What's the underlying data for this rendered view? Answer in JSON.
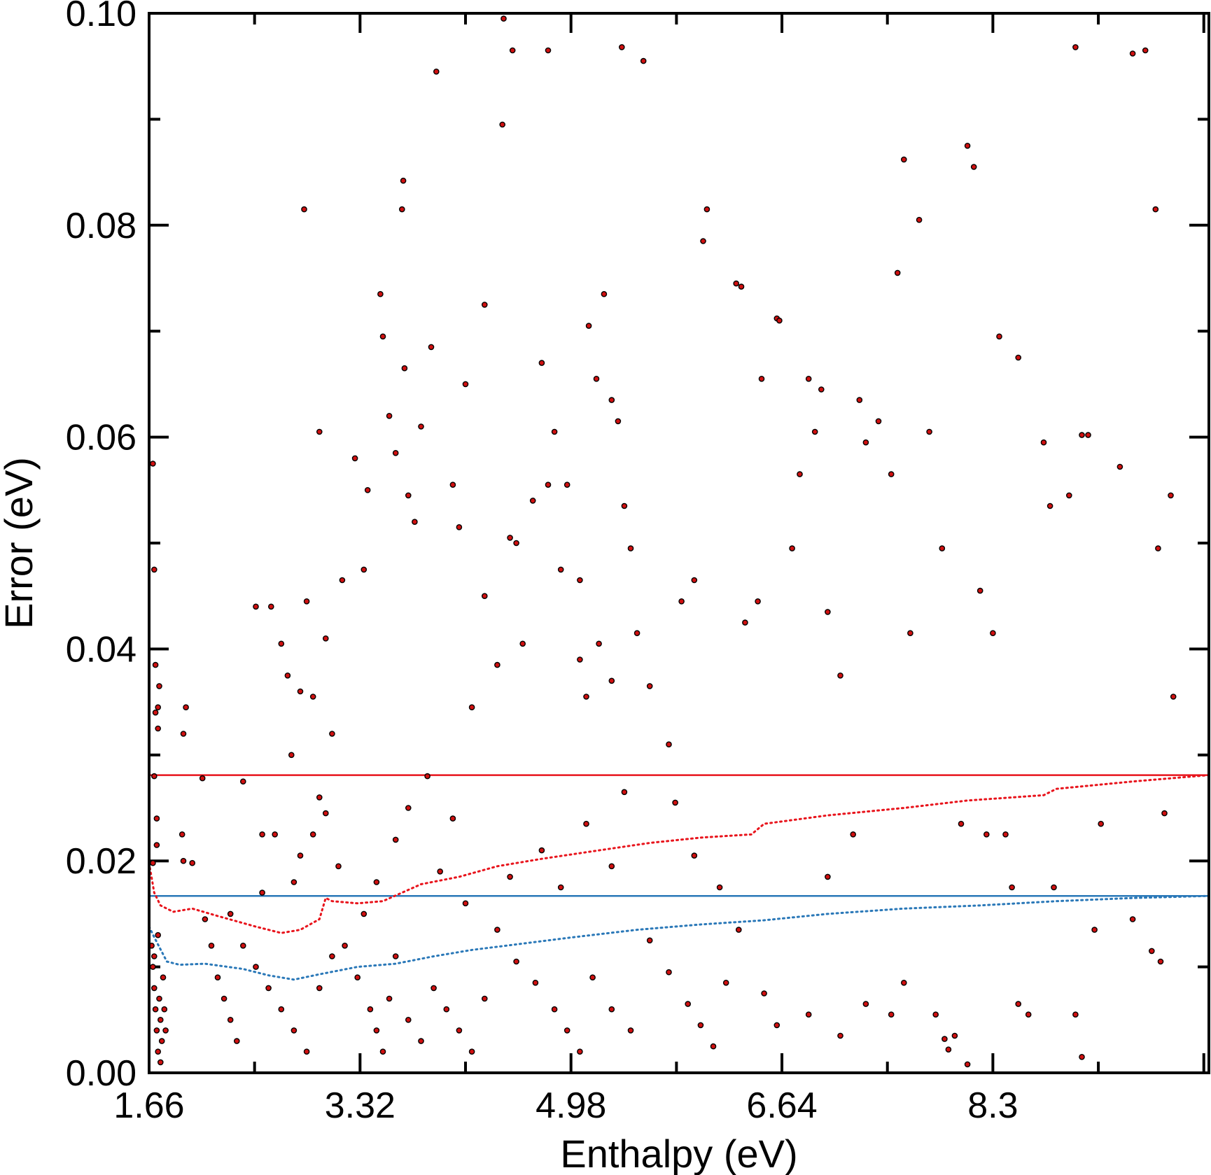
{
  "chart_data": {
    "type": "scatter",
    "title": "",
    "xlabel": "Enthalpy (eV)",
    "ylabel": "Error (eV)",
    "xlim": [
      1.66,
      10.0
    ],
    "ylim": [
      0.0,
      0.1
    ],
    "x_ticks": [
      "1.66",
      "3.32",
      "4.98",
      "6.64",
      "8.3"
    ],
    "x_tick_values": [
      1.66,
      3.32,
      4.98,
      6.64,
      8.3
    ],
    "y_ticks": [
      "0.00",
      "0.02",
      "0.04",
      "0.06",
      "0.08",
      "0.10"
    ],
    "y_tick_values": [
      0.0,
      0.02,
      0.04,
      0.06,
      0.08,
      0.1
    ],
    "grid": false,
    "legend": "none",
    "colors": {
      "points_fill": "#d01010",
      "points_edge": "#000000",
      "red_line": "#e8141c",
      "blue_line": "#2a78b8"
    },
    "series": [
      {
        "kind": "scatter",
        "color": "#d01010",
        "points": [
          [
            1.69,
            0.0575
          ],
          [
            1.7,
            0.0475
          ],
          [
            1.71,
            0.0385
          ],
          [
            1.71,
            0.034
          ],
          [
            1.73,
            0.0345
          ],
          [
            1.73,
            0.0325
          ],
          [
            1.74,
            0.0365
          ],
          [
            1.7,
            0.028
          ],
          [
            1.72,
            0.024
          ],
          [
            1.72,
            0.0215
          ],
          [
            1.69,
            0.0198
          ],
          [
            1.68,
            0.012
          ],
          [
            1.69,
            0.01
          ],
          [
            1.7,
            0.008
          ],
          [
            1.71,
            0.006
          ],
          [
            1.72,
            0.004
          ],
          [
            1.73,
            0.002
          ],
          [
            1.74,
            0.007
          ],
          [
            1.75,
            0.005
          ],
          [
            1.76,
            0.003
          ],
          [
            1.77,
            0.009
          ],
          [
            1.78,
            0.006
          ],
          [
            1.7,
            0.011
          ],
          [
            1.73,
            0.013
          ],
          [
            1.75,
            0.001
          ],
          [
            1.79,
            0.004
          ],
          [
            1.95,
            0.0345
          ],
          [
            1.93,
            0.032
          ],
          [
            1.92,
            0.0225
          ],
          [
            1.93,
            0.02
          ],
          [
            2.08,
            0.0278
          ],
          [
            2.0,
            0.0198
          ],
          [
            2.1,
            0.0145
          ],
          [
            2.15,
            0.012
          ],
          [
            2.2,
            0.009
          ],
          [
            2.25,
            0.007
          ],
          [
            2.3,
            0.005
          ],
          [
            2.35,
            0.003
          ],
          [
            2.4,
            0.0275
          ],
          [
            2.55,
            0.0225
          ],
          [
            2.5,
            0.044
          ],
          [
            2.62,
            0.044
          ],
          [
            2.7,
            0.0405
          ],
          [
            2.75,
            0.0375
          ],
          [
            2.85,
            0.036
          ],
          [
            2.95,
            0.0355
          ],
          [
            2.9,
            0.0445
          ],
          [
            3.05,
            0.041
          ],
          [
            3.18,
            0.0465
          ],
          [
            3.1,
            0.032
          ],
          [
            3.0,
            0.026
          ],
          [
            2.78,
            0.03
          ],
          [
            2.65,
            0.0225
          ],
          [
            2.8,
            0.018
          ],
          [
            2.88,
            0.0815
          ],
          [
            3.0,
            0.0605
          ],
          [
            3.28,
            0.058
          ],
          [
            3.35,
            0.0475
          ],
          [
            3.38,
            0.055
          ],
          [
            3.48,
            0.0735
          ],
          [
            3.5,
            0.0695
          ],
          [
            3.55,
            0.062
          ],
          [
            3.6,
            0.0585
          ],
          [
            3.65,
            0.0815
          ],
          [
            3.66,
            0.0842
          ],
          [
            3.67,
            0.0665
          ],
          [
            3.7,
            0.0545
          ],
          [
            3.75,
            0.052
          ],
          [
            3.8,
            0.061
          ],
          [
            3.88,
            0.0685
          ],
          [
            4.05,
            0.0555
          ],
          [
            4.1,
            0.0515
          ],
          [
            4.15,
            0.065
          ],
          [
            4.3,
            0.0725
          ],
          [
            4.44,
            0.0895
          ],
          [
            4.45,
            0.0995
          ],
          [
            4.52,
            0.0965
          ],
          [
            3.92,
            0.0945
          ],
          [
            4.8,
            0.0965
          ],
          [
            5.38,
            0.0968
          ],
          [
            5.55,
            0.0955
          ],
          [
            4.2,
            0.0345
          ],
          [
            4.3,
            0.045
          ],
          [
            4.4,
            0.0385
          ],
          [
            4.5,
            0.0505
          ],
          [
            4.55,
            0.05
          ],
          [
            4.6,
            0.0405
          ],
          [
            4.68,
            0.054
          ],
          [
            4.75,
            0.067
          ],
          [
            4.8,
            0.0555
          ],
          [
            4.85,
            0.0605
          ],
          [
            4.9,
            0.0475
          ],
          [
            4.95,
            0.0555
          ],
          [
            5.05,
            0.0465
          ],
          [
            5.12,
            0.0705
          ],
          [
            5.18,
            0.0655
          ],
          [
            5.24,
            0.0735
          ],
          [
            5.3,
            0.0635
          ],
          [
            5.35,
            0.0615
          ],
          [
            5.4,
            0.0535
          ],
          [
            5.45,
            0.0495
          ],
          [
            5.05,
            0.039
          ],
          [
            5.1,
            0.0355
          ],
          [
            5.2,
            0.0405
          ],
          [
            5.3,
            0.037
          ],
          [
            5.5,
            0.0415
          ],
          [
            5.6,
            0.0365
          ],
          [
            5.75,
            0.031
          ],
          [
            5.85,
            0.0445
          ],
          [
            5.95,
            0.0465
          ],
          [
            6.05,
            0.0815
          ],
          [
            6.02,
            0.0785
          ],
          [
            6.28,
            0.0745
          ],
          [
            6.32,
            0.0742
          ],
          [
            6.35,
            0.0425
          ],
          [
            6.45,
            0.0445
          ],
          [
            6.48,
            0.0655
          ],
          [
            6.6,
            0.0712
          ],
          [
            6.62,
            0.071
          ],
          [
            6.72,
            0.0495
          ],
          [
            6.78,
            0.0565
          ],
          [
            6.85,
            0.0655
          ],
          [
            6.9,
            0.0605
          ],
          [
            6.95,
            0.0645
          ],
          [
            7.0,
            0.0435
          ],
          [
            7.1,
            0.0375
          ],
          [
            7.25,
            0.0635
          ],
          [
            7.3,
            0.0595
          ],
          [
            7.4,
            0.0615
          ],
          [
            7.5,
            0.0565
          ],
          [
            7.55,
            0.0755
          ],
          [
            7.6,
            0.0862
          ],
          [
            7.65,
            0.0415
          ],
          [
            7.72,
            0.0805
          ],
          [
            7.8,
            0.0605
          ],
          [
            7.9,
            0.0495
          ],
          [
            8.1,
            0.0875
          ],
          [
            8.15,
            0.0855
          ],
          [
            8.2,
            0.0455
          ],
          [
            8.3,
            0.0415
          ],
          [
            8.35,
            0.0695
          ],
          [
            8.5,
            0.0675
          ],
          [
            8.7,
            0.0595
          ],
          [
            8.75,
            0.0535
          ],
          [
            8.9,
            0.0545
          ],
          [
            9.0,
            0.0602
          ],
          [
            9.05,
            0.0602
          ],
          [
            8.95,
            0.0968
          ],
          [
            9.4,
            0.0962
          ],
          [
            9.5,
            0.0965
          ],
          [
            9.3,
            0.0572
          ],
          [
            9.6,
            0.0495
          ],
          [
            9.7,
            0.0545
          ],
          [
            9.72,
            0.0355
          ],
          [
            9.65,
            0.0245
          ],
          [
            9.58,
            0.0815
          ],
          [
            3.2,
            0.012
          ],
          [
            3.3,
            0.009
          ],
          [
            3.4,
            0.006
          ],
          [
            3.45,
            0.004
          ],
          [
            3.5,
            0.002
          ],
          [
            3.55,
            0.007
          ],
          [
            3.6,
            0.011
          ],
          [
            3.7,
            0.005
          ],
          [
            3.8,
            0.003
          ],
          [
            3.9,
            0.008
          ],
          [
            4.0,
            0.006
          ],
          [
            4.1,
            0.004
          ],
          [
            4.2,
            0.002
          ],
          [
            4.3,
            0.007
          ],
          [
            3.35,
            0.015
          ],
          [
            3.45,
            0.018
          ],
          [
            3.6,
            0.022
          ],
          [
            3.7,
            0.025
          ],
          [
            3.85,
            0.028
          ],
          [
            3.95,
            0.019
          ],
          [
            4.05,
            0.024
          ],
          [
            4.15,
            0.016
          ],
          [
            2.3,
            0.015
          ],
          [
            2.4,
            0.012
          ],
          [
            2.5,
            0.01
          ],
          [
            2.6,
            0.008
          ],
          [
            2.7,
            0.006
          ],
          [
            2.8,
            0.004
          ],
          [
            2.9,
            0.002
          ],
          [
            3.0,
            0.008
          ],
          [
            3.1,
            0.011
          ],
          [
            2.55,
            0.017
          ],
          [
            2.85,
            0.0205
          ],
          [
            3.05,
            0.0245
          ],
          [
            3.15,
            0.0195
          ],
          [
            2.95,
            0.0225
          ],
          [
            4.4,
            0.0135
          ],
          [
            4.55,
            0.0105
          ],
          [
            4.7,
            0.0085
          ],
          [
            4.85,
            0.006
          ],
          [
            4.95,
            0.004
          ],
          [
            5.05,
            0.002
          ],
          [
            5.15,
            0.009
          ],
          [
            5.3,
            0.006
          ],
          [
            5.45,
            0.004
          ],
          [
            4.5,
            0.0185
          ],
          [
            4.75,
            0.021
          ],
          [
            4.9,
            0.0175
          ],
          [
            5.1,
            0.0235
          ],
          [
            5.3,
            0.0195
          ],
          [
            5.4,
            0.0265
          ],
          [
            5.6,
            0.0125
          ],
          [
            5.75,
            0.0095
          ],
          [
            5.9,
            0.0065
          ],
          [
            6.0,
            0.0045
          ],
          [
            6.1,
            0.0025
          ],
          [
            6.2,
            0.0085
          ],
          [
            5.8,
            0.0255
          ],
          [
            5.95,
            0.0205
          ],
          [
            6.15,
            0.0175
          ],
          [
            6.3,
            0.0135
          ],
          [
            6.5,
            0.0075
          ],
          [
            6.6,
            0.0045
          ],
          [
            6.85,
            0.0055
          ],
          [
            7.1,
            0.0035
          ],
          [
            7.0,
            0.0185
          ],
          [
            7.2,
            0.0225
          ],
          [
            7.3,
            0.0065
          ],
          [
            7.5,
            0.0055
          ],
          [
            7.6,
            0.0085
          ],
          [
            7.85,
            0.0055
          ],
          [
            8.0,
            0.0035
          ],
          [
            8.05,
            0.0235
          ],
          [
            8.25,
            0.0225
          ],
          [
            8.4,
            0.0225
          ],
          [
            8.45,
            0.0175
          ],
          [
            8.5,
            0.0065
          ],
          [
            8.58,
            0.0055
          ],
          [
            8.78,
            0.0175
          ],
          [
            8.95,
            0.0055
          ],
          [
            9.1,
            0.0135
          ],
          [
            9.15,
            0.0235
          ],
          [
            9.4,
            0.0145
          ],
          [
            9.55,
            0.0115
          ],
          [
            9.62,
            0.0105
          ],
          [
            9.0,
            0.0015
          ],
          [
            8.1,
            0.0008
          ],
          [
            7.95,
            0.0022
          ],
          [
            7.92,
            0.0032
          ]
        ]
      },
      {
        "kind": "line",
        "style": "solid",
        "color": "#e8141c",
        "points": [
          [
            1.66,
            0.0281
          ],
          [
            10.0,
            0.0281
          ]
        ]
      },
      {
        "kind": "line",
        "style": "solid",
        "color": "#2a78b8",
        "points": [
          [
            1.66,
            0.0167
          ],
          [
            10.0,
            0.0167
          ]
        ]
      },
      {
        "kind": "line",
        "style": "dotted",
        "color": "#e8141c",
        "points": [
          [
            1.66,
            0.0198
          ],
          [
            1.7,
            0.017
          ],
          [
            1.75,
            0.0158
          ],
          [
            1.85,
            0.0152
          ],
          [
            2.0,
            0.0155
          ],
          [
            2.2,
            0.0148
          ],
          [
            2.5,
            0.0138
          ],
          [
            2.7,
            0.0132
          ],
          [
            2.85,
            0.0135
          ],
          [
            3.0,
            0.0145
          ],
          [
            3.05,
            0.0165
          ],
          [
            3.1,
            0.0162
          ],
          [
            3.3,
            0.016
          ],
          [
            3.5,
            0.0162
          ],
          [
            3.8,
            0.0178
          ],
          [
            4.1,
            0.0185
          ],
          [
            4.4,
            0.0195
          ],
          [
            4.75,
            0.0202
          ],
          [
            5.2,
            0.021
          ],
          [
            5.6,
            0.0217
          ],
          [
            6.0,
            0.0222
          ],
          [
            6.4,
            0.0225
          ],
          [
            6.5,
            0.0235
          ],
          [
            7.0,
            0.0243
          ],
          [
            7.6,
            0.025
          ],
          [
            8.1,
            0.0257
          ],
          [
            8.7,
            0.0262
          ],
          [
            8.8,
            0.0268
          ],
          [
            9.4,
            0.0275
          ],
          [
            9.8,
            0.0279
          ],
          [
            10.0,
            0.0281
          ]
        ]
      },
      {
        "kind": "line",
        "style": "dotted",
        "color": "#2a78b8",
        "points": [
          [
            1.66,
            0.0138
          ],
          [
            1.7,
            0.0128
          ],
          [
            1.8,
            0.0105
          ],
          [
            1.9,
            0.0102
          ],
          [
            2.1,
            0.0103
          ],
          [
            2.4,
            0.0098
          ],
          [
            2.6,
            0.0092
          ],
          [
            2.8,
            0.0088
          ],
          [
            3.0,
            0.0093
          ],
          [
            3.3,
            0.01
          ],
          [
            3.6,
            0.0103
          ],
          [
            3.9,
            0.011
          ],
          [
            4.2,
            0.0116
          ],
          [
            4.6,
            0.0122
          ],
          [
            5.0,
            0.0128
          ],
          [
            5.5,
            0.0135
          ],
          [
            6.0,
            0.014
          ],
          [
            6.5,
            0.0144
          ],
          [
            7.0,
            0.015
          ],
          [
            7.6,
            0.0155
          ],
          [
            8.2,
            0.0158
          ],
          [
            8.8,
            0.0162
          ],
          [
            9.4,
            0.0165
          ],
          [
            10.0,
            0.0167
          ]
        ]
      }
    ]
  }
}
